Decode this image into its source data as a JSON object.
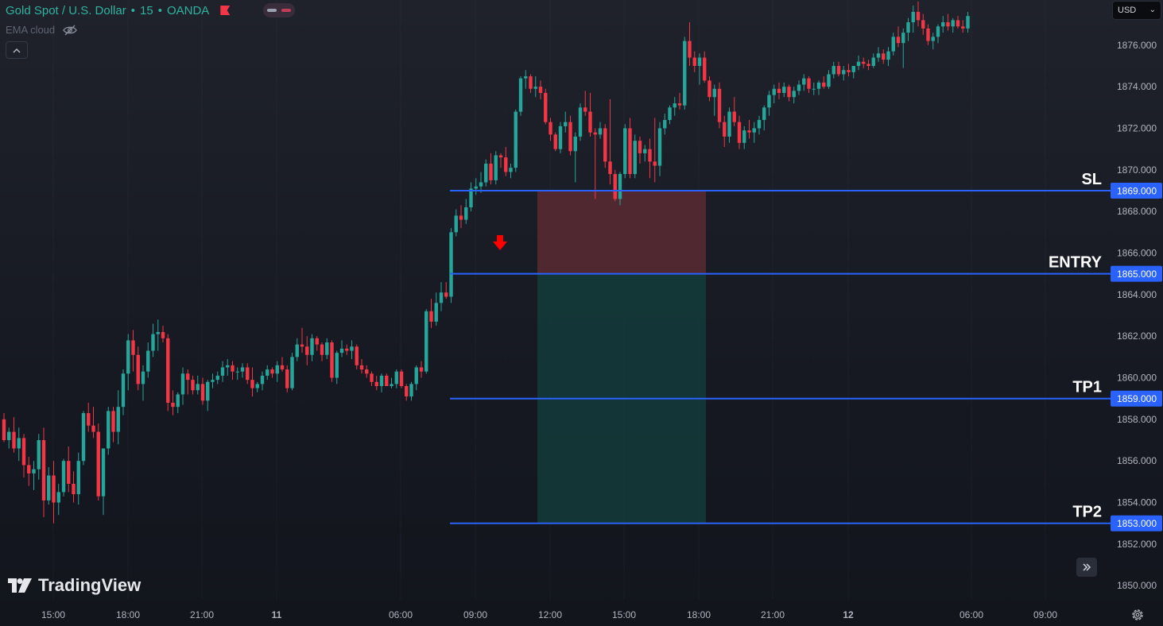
{
  "header": {
    "symbol": "Gold Spot / U.S. Dollar",
    "sep1": "•",
    "interval": "15",
    "sep2": "•",
    "exchange": "OANDA",
    "indicator": "EMA cloud",
    "currency": "USD"
  },
  "brand": {
    "name": "TradingView"
  },
  "icons": {
    "flag": "flag-icon",
    "pill": "toggle-pill-icon",
    "visibility": "eye-slash-icon",
    "collapse": "chevron-up-icon",
    "currency_dropdown": "chevron-down-icon",
    "scroll": "double-chevron-right-icon",
    "settings": "gear-icon",
    "signal": "down-arrow-icon"
  },
  "colors": {
    "up": "#26a69a",
    "down": "#f23645",
    "level_line": "#2962ff",
    "loss_zone": "#5b2a33",
    "profit_zone": "#133b3b",
    "arrow": "#ff0000",
    "axis_text": "#b2b5be"
  },
  "chart_data": {
    "type": "candlestick",
    "instrument": "Gold Spot / U.S. Dollar",
    "timeframe": "15",
    "yaxis": {
      "ticks": [
        "1876.000",
        "1874.000",
        "1872.000",
        "1870.000",
        "1868.000",
        "1866.000",
        "1864.000",
        "1862.000",
        "1860.000",
        "1858.000",
        "1856.000",
        "1854.000",
        "1852.000",
        "1850.000"
      ]
    },
    "xaxis": {
      "ticks": [
        {
          "label": "15:00",
          "bold": false
        },
        {
          "label": "18:00",
          "bold": false
        },
        {
          "label": "21:00",
          "bold": false
        },
        {
          "label": "11",
          "bold": true
        },
        {
          "label": "06:00",
          "bold": false
        },
        {
          "label": "09:00",
          "bold": false
        },
        {
          "label": "12:00",
          "bold": false
        },
        {
          "label": "15:00",
          "bold": false
        },
        {
          "label": "18:00",
          "bold": false
        },
        {
          "label": "21:00",
          "bold": false
        },
        {
          "label": "12",
          "bold": true
        },
        {
          "label": "06:00",
          "bold": false
        },
        {
          "label": "09:00",
          "bold": false
        }
      ]
    },
    "levels": [
      {
        "name": "SL",
        "price": 1869.0,
        "price_label": "1869.000"
      },
      {
        "name": "ENTRY",
        "price": 1865.0,
        "price_label": "1865.000"
      },
      {
        "name": "TP1",
        "price": 1859.0,
        "price_label": "1859.000"
      },
      {
        "name": "TP2",
        "price": 1853.0,
        "price_label": "1853.000"
      }
    ],
    "position": {
      "side": "short",
      "entry": 1865.0,
      "stop": 1869.0,
      "target": 1853.0
    },
    "signal": {
      "type": "sell-arrow",
      "price": 1866.4
    },
    "candles": [
      [
        1858.0,
        1858.3,
        1856.9,
        1857.0
      ],
      [
        1857.0,
        1857.6,
        1856.6,
        1857.4
      ],
      [
        1857.4,
        1858.1,
        1856.4,
        1856.6
      ],
      [
        1856.6,
        1857.6,
        1856.0,
        1857.1
      ],
      [
        1857.1,
        1857.3,
        1855.2,
        1855.8
      ],
      [
        1855.8,
        1856.2,
        1854.8,
        1855.4
      ],
      [
        1855.4,
        1856.0,
        1854.6,
        1855.6
      ],
      [
        1855.6,
        1857.3,
        1855.1,
        1857.0
      ],
      [
        1857.0,
        1857.6,
        1853.3,
        1854.1
      ],
      [
        1854.1,
        1855.7,
        1853.9,
        1855.3
      ],
      [
        1855.3,
        1856.0,
        1853.0,
        1854.0
      ],
      [
        1854.0,
        1854.9,
        1853.4,
        1854.5
      ],
      [
        1854.5,
        1856.1,
        1854.3,
        1856.0
      ],
      [
        1856.0,
        1856.7,
        1854.5,
        1854.9
      ],
      [
        1854.9,
        1855.5,
        1854.0,
        1854.4
      ],
      [
        1854.4,
        1856.4,
        1853.9,
        1856.0
      ],
      [
        1856.0,
        1858.4,
        1855.8,
        1858.3
      ],
      [
        1858.3,
        1858.8,
        1857.4,
        1857.7
      ],
      [
        1857.7,
        1858.6,
        1857.1,
        1857.4
      ],
      [
        1857.4,
        1857.8,
        1854.1,
        1854.3
      ],
      [
        1854.3,
        1856.6,
        1853.4,
        1856.6
      ],
      [
        1856.6,
        1858.6,
        1856.3,
        1858.4
      ],
      [
        1858.4,
        1858.6,
        1856.9,
        1857.4
      ],
      [
        1857.4,
        1859.4,
        1856.8,
        1858.6
      ],
      [
        1858.6,
        1860.4,
        1858.2,
        1860.2
      ],
      [
        1860.2,
        1862.1,
        1859.4,
        1861.8
      ],
      [
        1861.8,
        1862.3,
        1860.3,
        1861.1
      ],
      [
        1861.1,
        1861.5,
        1859.4,
        1859.7
      ],
      [
        1859.7,
        1860.6,
        1858.9,
        1860.3
      ],
      [
        1860.3,
        1861.7,
        1860.0,
        1861.3
      ],
      [
        1861.3,
        1862.6,
        1861.0,
        1862.1
      ],
      [
        1862.1,
        1862.8,
        1861.3,
        1862.2
      ],
      [
        1862.2,
        1862.5,
        1861.7,
        1861.9
      ],
      [
        1861.9,
        1862.1,
        1858.4,
        1858.8
      ],
      [
        1858.8,
        1859.4,
        1858.2,
        1858.6
      ],
      [
        1858.6,
        1859.3,
        1858.3,
        1859.2
      ],
      [
        1859.2,
        1860.5,
        1858.7,
        1860.2
      ],
      [
        1860.2,
        1860.4,
        1859.2,
        1859.9
      ],
      [
        1859.9,
        1860.1,
        1859.2,
        1859.4
      ],
      [
        1859.4,
        1860.1,
        1859.2,
        1859.7
      ],
      [
        1859.7,
        1860.0,
        1858.7,
        1858.9
      ],
      [
        1858.9,
        1859.9,
        1858.4,
        1859.8
      ],
      [
        1859.8,
        1860.2,
        1859.5,
        1859.9
      ],
      [
        1859.9,
        1860.3,
        1859.7,
        1860.1
      ],
      [
        1860.1,
        1860.8,
        1859.8,
        1860.5
      ],
      [
        1860.5,
        1860.9,
        1860.1,
        1860.6
      ],
      [
        1860.6,
        1860.8,
        1859.9,
        1860.3
      ],
      [
        1860.3,
        1860.5,
        1859.9,
        1860.3
      ],
      [
        1860.3,
        1860.7,
        1860.0,
        1860.5
      ],
      [
        1860.5,
        1860.7,
        1859.7,
        1859.9
      ],
      [
        1859.9,
        1860.5,
        1859.1,
        1859.5
      ],
      [
        1859.5,
        1859.8,
        1859.3,
        1859.7
      ],
      [
        1859.7,
        1860.3,
        1859.4,
        1860.1
      ],
      [
        1860.1,
        1860.6,
        1859.9,
        1860.4
      ],
      [
        1860.4,
        1860.5,
        1860.0,
        1860.2
      ],
      [
        1860.2,
        1860.8,
        1859.8,
        1860.6
      ],
      [
        1860.6,
        1861.0,
        1860.3,
        1860.4
      ],
      [
        1860.4,
        1860.6,
        1859.3,
        1859.5
      ],
      [
        1859.5,
        1861.2,
        1859.4,
        1861.0
      ],
      [
        1861.0,
        1861.9,
        1860.8,
        1861.6
      ],
      [
        1861.6,
        1862.4,
        1861.2,
        1861.5
      ],
      [
        1861.5,
        1862.0,
        1860.6,
        1861.1
      ],
      [
        1861.1,
        1862.1,
        1860.8,
        1861.9
      ],
      [
        1861.9,
        1862.0,
        1861.3,
        1861.6
      ],
      [
        1861.6,
        1861.7,
        1860.8,
        1861.1
      ],
      [
        1861.1,
        1861.9,
        1860.9,
        1861.7
      ],
      [
        1861.7,
        1861.8,
        1859.8,
        1860.0
      ],
      [
        1860.0,
        1861.3,
        1859.7,
        1861.2
      ],
      [
        1861.2,
        1861.8,
        1861.0,
        1861.4
      ],
      [
        1861.4,
        1861.6,
        1861.1,
        1861.3
      ],
      [
        1861.3,
        1861.8,
        1860.9,
        1861.5
      ],
      [
        1861.5,
        1861.6,
        1860.4,
        1860.6
      ],
      [
        1860.6,
        1860.9,
        1860.2,
        1860.4
      ],
      [
        1860.4,
        1860.6,
        1860.0,
        1860.2
      ],
      [
        1860.2,
        1860.3,
        1859.6,
        1859.8
      ],
      [
        1859.8,
        1860.1,
        1859.4,
        1859.6
      ],
      [
        1859.6,
        1860.2,
        1859.3,
        1860.1
      ],
      [
        1860.1,
        1860.2,
        1859.6,
        1859.6
      ],
      [
        1859.6,
        1860.0,
        1859.5,
        1859.7
      ],
      [
        1859.7,
        1860.4,
        1859.5,
        1860.3
      ],
      [
        1860.3,
        1860.4,
        1859.5,
        1859.6
      ],
      [
        1859.6,
        1859.7,
        1858.9,
        1859.1
      ],
      [
        1859.1,
        1859.8,
        1858.9,
        1859.7
      ],
      [
        1859.7,
        1860.6,
        1859.4,
        1860.5
      ],
      [
        1860.5,
        1860.8,
        1860.0,
        1860.3
      ],
      [
        1860.3,
        1863.3,
        1860.2,
        1863.2
      ],
      [
        1863.2,
        1863.8,
        1862.4,
        1862.7
      ],
      [
        1862.7,
        1864.1,
        1862.5,
        1863.6
      ],
      [
        1863.6,
        1864.6,
        1863.2,
        1864.1
      ],
      [
        1864.1,
        1864.6,
        1863.8,
        1863.9
      ],
      [
        1863.9,
        1867.2,
        1863.6,
        1867.0
      ],
      [
        1867.0,
        1868.1,
        1866.8,
        1867.8
      ],
      [
        1867.8,
        1868.3,
        1867.2,
        1867.6
      ],
      [
        1867.6,
        1868.6,
        1867.4,
        1868.2
      ],
      [
        1868.2,
        1869.4,
        1868.0,
        1869.1
      ],
      [
        1869.1,
        1869.6,
        1868.8,
        1869.2
      ],
      [
        1869.2,
        1869.9,
        1868.9,
        1869.4
      ],
      [
        1869.4,
        1870.5,
        1869.2,
        1870.3
      ],
      [
        1870.3,
        1870.8,
        1869.3,
        1869.5
      ],
      [
        1869.5,
        1870.9,
        1869.3,
        1870.7
      ],
      [
        1870.7,
        1870.8,
        1870.1,
        1870.6
      ],
      [
        1870.6,
        1871.1,
        1869.7,
        1869.9
      ],
      [
        1869.9,
        1870.3,
        1869.6,
        1870.1
      ],
      [
        1870.1,
        1872.9,
        1869.9,
        1872.8
      ],
      [
        1872.8,
        1874.5,
        1872.6,
        1874.4
      ],
      [
        1874.4,
        1874.8,
        1873.9,
        1874.5
      ],
      [
        1874.5,
        1874.6,
        1873.7,
        1873.9
      ],
      [
        1873.9,
        1874.5,
        1873.5,
        1874.0
      ],
      [
        1874.0,
        1874.3,
        1873.4,
        1873.7
      ],
      [
        1873.7,
        1873.9,
        1872.2,
        1872.3
      ],
      [
        1872.3,
        1872.5,
        1871.4,
        1871.7
      ],
      [
        1871.7,
        1871.8,
        1870.9,
        1871.0
      ],
      [
        1871.0,
        1872.3,
        1870.8,
        1872.1
      ],
      [
        1872.1,
        1872.8,
        1871.8,
        1872.3
      ],
      [
        1872.3,
        1872.6,
        1870.7,
        1870.9
      ],
      [
        1870.9,
        1871.8,
        1869.4,
        1871.6
      ],
      [
        1871.6,
        1873.2,
        1871.4,
        1873.0
      ],
      [
        1873.0,
        1873.8,
        1872.6,
        1872.8
      ],
      [
        1872.8,
        1873.7,
        1871.6,
        1871.8
      ],
      [
        1871.8,
        1872.0,
        1868.6,
        1871.7
      ],
      [
        1871.7,
        1872.3,
        1871.5,
        1872.0
      ],
      [
        1872.0,
        1872.2,
        1870.1,
        1870.4
      ],
      [
        1870.4,
        1873.4,
        1869.3,
        1869.8
      ],
      [
        1869.8,
        1870.0,
        1868.5,
        1868.6
      ],
      [
        1868.6,
        1869.9,
        1868.3,
        1869.8
      ],
      [
        1869.8,
        1872.2,
        1869.6,
        1872.0
      ],
      [
        1872.0,
        1872.5,
        1869.6,
        1869.8
      ],
      [
        1869.8,
        1871.7,
        1869.6,
        1871.4
      ],
      [
        1871.4,
        1871.6,
        1870.3,
        1870.8
      ],
      [
        1870.8,
        1871.2,
        1870.4,
        1871.0
      ],
      [
        1871.0,
        1871.5,
        1869.6,
        1870.4
      ],
      [
        1870.4,
        1872.5,
        1869.4,
        1870.2
      ],
      [
        1870.2,
        1872.3,
        1869.7,
        1872.0
      ],
      [
        1872.0,
        1872.7,
        1871.7,
        1872.4
      ],
      [
        1872.4,
        1873.1,
        1872.2,
        1873.0
      ],
      [
        1873.0,
        1873.5,
        1872.6,
        1873.2
      ],
      [
        1873.2,
        1873.7,
        1872.9,
        1873.1
      ],
      [
        1873.1,
        1876.4,
        1872.9,
        1876.2
      ],
      [
        1876.2,
        1877.1,
        1875.0,
        1875.4
      ],
      [
        1875.4,
        1875.7,
        1874.7,
        1875.0
      ],
      [
        1875.0,
        1875.6,
        1874.1,
        1875.4
      ],
      [
        1875.4,
        1875.7,
        1874.2,
        1874.3
      ],
      [
        1874.3,
        1874.5,
        1873.3,
        1873.5
      ],
      [
        1873.5,
        1874.1,
        1872.6,
        1873.9
      ],
      [
        1873.9,
        1874.2,
        1872.0,
        1872.3
      ],
      [
        1872.3,
        1872.6,
        1871.1,
        1871.6
      ],
      [
        1871.6,
        1873.0,
        1871.3,
        1872.8
      ],
      [
        1872.8,
        1873.5,
        1872.1,
        1872.3
      ],
      [
        1872.3,
        1872.6,
        1871.0,
        1871.3
      ],
      [
        1871.3,
        1872.1,
        1871.0,
        1871.9
      ],
      [
        1871.9,
        1872.4,
        1871.5,
        1871.8
      ],
      [
        1871.8,
        1872.3,
        1871.3,
        1872.0
      ],
      [
        1872.0,
        1872.6,
        1871.7,
        1872.4
      ],
      [
        1872.4,
        1873.1,
        1871.9,
        1873.0
      ],
      [
        1873.0,
        1873.8,
        1872.6,
        1873.6
      ],
      [
        1873.6,
        1874.1,
        1873.2,
        1873.9
      ],
      [
        1873.9,
        1874.2,
        1873.4,
        1873.7
      ],
      [
        1873.7,
        1874.2,
        1873.5,
        1874.0
      ],
      [
        1874.0,
        1874.1,
        1873.3,
        1873.5
      ],
      [
        1873.5,
        1874.0,
        1873.2,
        1873.8
      ],
      [
        1873.8,
        1874.3,
        1873.6,
        1874.1
      ],
      [
        1874.1,
        1874.6,
        1873.8,
        1874.4
      ],
      [
        1874.4,
        1874.5,
        1873.7,
        1873.9
      ],
      [
        1873.9,
        1874.2,
        1873.6,
        1873.9
      ],
      [
        1873.9,
        1874.3,
        1873.6,
        1874.2
      ],
      [
        1874.2,
        1874.5,
        1873.9,
        1874.0
      ],
      [
        1874.0,
        1874.8,
        1873.9,
        1874.6
      ],
      [
        1874.6,
        1875.2,
        1874.4,
        1875.0
      ],
      [
        1875.0,
        1875.2,
        1874.5,
        1874.6
      ],
      [
        1874.6,
        1875.0,
        1874.3,
        1874.8
      ],
      [
        1874.8,
        1875.1,
        1874.5,
        1874.7
      ],
      [
        1874.7,
        1875.0,
        1874.4,
        1875.0
      ],
      [
        1875.0,
        1875.5,
        1874.8,
        1875.2
      ],
      [
        1875.2,
        1875.4,
        1874.9,
        1875.1
      ],
      [
        1875.1,
        1875.3,
        1874.8,
        1875.0
      ],
      [
        1875.0,
        1875.6,
        1874.9,
        1875.4
      ],
      [
        1875.4,
        1875.9,
        1875.2,
        1875.6
      ],
      [
        1875.6,
        1875.8,
        1875.1,
        1875.3
      ],
      [
        1875.3,
        1875.9,
        1875.0,
        1875.7
      ],
      [
        1875.7,
        1876.6,
        1875.5,
        1876.4
      ],
      [
        1876.4,
        1876.9,
        1875.9,
        1876.1
      ],
      [
        1876.1,
        1876.8,
        1874.9,
        1876.6
      ],
      [
        1876.6,
        1877.3,
        1876.2,
        1877.1
      ],
      [
        1877.1,
        1877.9,
        1876.6,
        1877.6
      ],
      [
        1877.6,
        1878.1,
        1876.9,
        1877.2
      ],
      [
        1877.2,
        1877.5,
        1876.5,
        1876.8
      ],
      [
        1876.8,
        1877.0,
        1876.0,
        1876.2
      ],
      [
        1876.2,
        1876.6,
        1875.8,
        1876.4
      ],
      [
        1876.4,
        1877.0,
        1876.1,
        1876.9
      ],
      [
        1876.9,
        1877.4,
        1876.6,
        1877.1
      ],
      [
        1877.1,
        1877.5,
        1876.7,
        1876.9
      ],
      [
        1876.9,
        1877.3,
        1876.6,
        1877.2
      ],
      [
        1877.2,
        1877.4,
        1876.8,
        1876.9
      ],
      [
        1876.9,
        1877.2,
        1876.6,
        1876.8
      ],
      [
        1876.8,
        1877.6,
        1876.6,
        1877.4
      ]
    ]
  }
}
